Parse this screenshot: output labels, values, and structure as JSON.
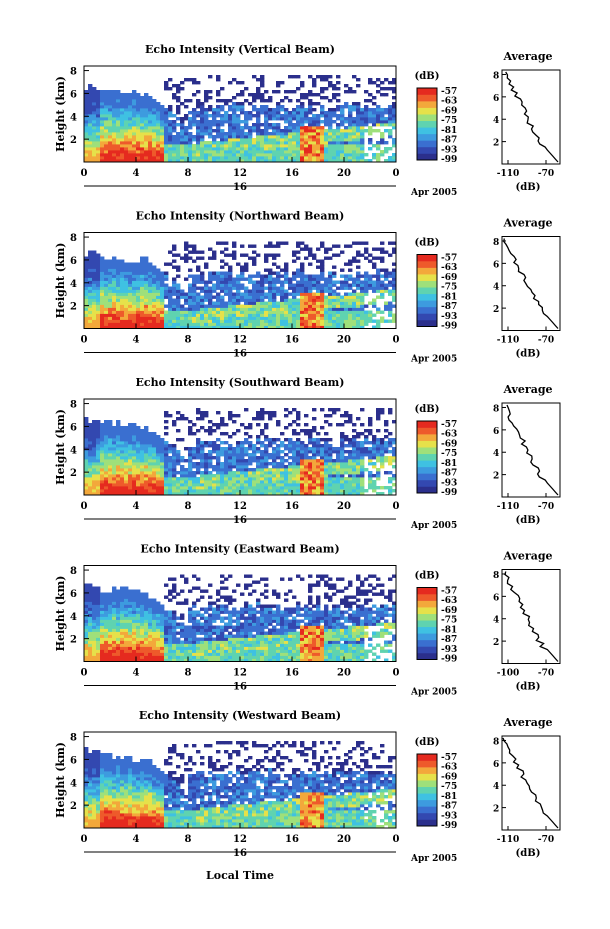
{
  "figure": {
    "bottom_label": "Local Time",
    "colorscale": [
      "#2b2f8c",
      "#3348b0",
      "#3a6fd0",
      "#3d9bdf",
      "#3fc1e2",
      "#5fd3b0",
      "#9fe07a",
      "#e6e14a",
      "#f3a83b",
      "#ee5a2b",
      "#e52a1f"
    ]
  },
  "chart_data": [
    {
      "type": "heatmap",
      "title": "Echo Intensity (Vertical Beam)",
      "ylabel": "Height (km)",
      "yticks": [
        "2",
        "4",
        "6",
        "8"
      ],
      "xticks": [
        "0",
        "4",
        "8",
        "12",
        "16",
        "20",
        "0"
      ],
      "day_label": "16",
      "date_label": "Apr 2005",
      "colorbar": {
        "unit": "(dB)",
        "ticks": [
          "-57",
          "-63",
          "-69",
          "-75",
          "-81",
          "-87",
          "-93",
          "-99"
        ]
      },
      "profile": {
        "title": "Average",
        "xlabel": "(dB)",
        "xticks": [
          "-110",
          "-70"
        ],
        "yticks": [
          "2",
          "4",
          "6",
          "8"
        ]
      }
    },
    {
      "type": "heatmap",
      "title": "Echo Intensity (Northward Beam)",
      "ylabel": "Height (km)",
      "yticks": [
        "2",
        "4",
        "6",
        "8"
      ],
      "xticks": [
        "0",
        "4",
        "8",
        "12",
        "16",
        "20",
        "0"
      ],
      "day_label": "16",
      "date_label": "Apr 2005",
      "colorbar": {
        "unit": "(dB)",
        "ticks": [
          "-57",
          "-63",
          "-69",
          "-75",
          "-81",
          "-87",
          "-93",
          "-99"
        ]
      },
      "profile": {
        "title": "Average",
        "xlabel": "(dB)",
        "xticks": [
          "-110",
          "-70"
        ],
        "yticks": [
          "2",
          "4",
          "6",
          "8"
        ]
      }
    },
    {
      "type": "heatmap",
      "title": "Echo Intensity (Southward Beam)",
      "ylabel": "Height (km)",
      "yticks": [
        "2",
        "4",
        "6",
        "8"
      ],
      "xticks": [
        "0",
        "4",
        "8",
        "12",
        "16",
        "20",
        "0"
      ],
      "day_label": "16",
      "date_label": "Apr 2005",
      "colorbar": {
        "unit": "(dB)",
        "ticks": [
          "-57",
          "-63",
          "-69",
          "-75",
          "-81",
          "-87",
          "-93",
          "-99"
        ]
      },
      "profile": {
        "title": "Average",
        "xlabel": "(dB)",
        "xticks": [
          "-110",
          "-70"
        ],
        "yticks": [
          "2",
          "4",
          "6",
          "8"
        ]
      }
    },
    {
      "type": "heatmap",
      "title": "Echo Intensity (Eastward Beam)",
      "ylabel": "Height (km)",
      "yticks": [
        "2",
        "4",
        "6",
        "8"
      ],
      "xticks": [
        "0",
        "4",
        "8",
        "12",
        "16",
        "20",
        "0"
      ],
      "day_label": "16",
      "date_label": "Apr 2005",
      "colorbar": {
        "unit": "(dB)",
        "ticks": [
          "-57",
          "-63",
          "-69",
          "-75",
          "-81",
          "-87",
          "-93",
          "-99"
        ]
      },
      "profile": {
        "title": "Average",
        "xlabel": "(dB)",
        "xticks": [
          "-100",
          "-70"
        ],
        "yticks": [
          "2",
          "4",
          "6",
          "8"
        ]
      }
    },
    {
      "type": "heatmap",
      "title": "Echo Intensity (Westward Beam)",
      "ylabel": "Height (km)",
      "yticks": [
        "2",
        "4",
        "6",
        "8"
      ],
      "xticks": [
        "0",
        "4",
        "8",
        "12",
        "16",
        "20",
        "0"
      ],
      "day_label": "16",
      "date_label": "Apr 2005",
      "colorbar": {
        "unit": "(dB)",
        "ticks": [
          "-57",
          "-63",
          "-69",
          "-75",
          "-81",
          "-87",
          "-93",
          "-99"
        ]
      },
      "profile": {
        "title": "Average",
        "xlabel": "(dB)",
        "xticks": [
          "-110",
          "-70"
        ],
        "yticks": [
          "2",
          "4",
          "6",
          "8"
        ]
      }
    }
  ]
}
